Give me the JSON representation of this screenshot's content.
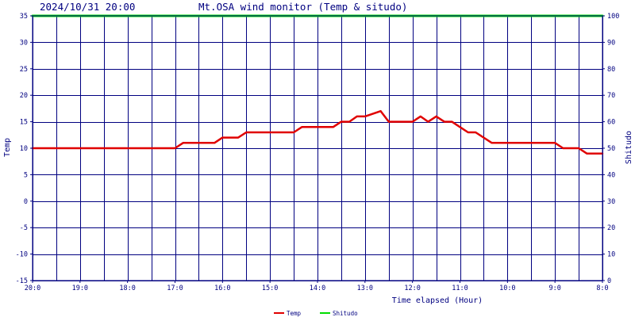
{
  "header": {
    "timestamp": "2024/10/31 20:00",
    "title": "Mt.OSA wind monitor (Temp & situdo)"
  },
  "colors": {
    "grid": "#000080",
    "axis": "#000080",
    "text": "#000080",
    "temp": "#e00000",
    "shitudo": "#00dd00",
    "background": "#ffffff"
  },
  "chart_data": {
    "type": "line",
    "title": "Mt.OSA wind monitor (Temp & situdo)",
    "xlabel": "Time elapsed (Hour)",
    "ylabel": "Temp",
    "y2label": "Shitudo",
    "xlim": [
      0,
      12
    ],
    "ylim": [
      -15,
      35
    ],
    "y2lim": [
      0,
      100
    ],
    "grid": true,
    "legend_position": "bottom-center",
    "x_ticks": [
      {
        "value": 0,
        "label": "20:0"
      },
      {
        "value": 1,
        "label": "19:0"
      },
      {
        "value": 2,
        "label": "18:0"
      },
      {
        "value": 3,
        "label": "17:0"
      },
      {
        "value": 4,
        "label": "16:0"
      },
      {
        "value": 5,
        "label": "15:0"
      },
      {
        "value": 6,
        "label": "14:0"
      },
      {
        "value": 7,
        "label": "13:0"
      },
      {
        "value": 8,
        "label": "12:0"
      },
      {
        "value": 9,
        "label": "11:0"
      },
      {
        "value": 10,
        "label": "10:0"
      },
      {
        "value": 11,
        "label": "9:0"
      },
      {
        "value": 12,
        "label": "8:0"
      }
    ],
    "y_ticks": [
      {
        "value": 35,
        "label": "35"
      },
      {
        "value": 30,
        "label": "30"
      },
      {
        "value": 25,
        "label": "25"
      },
      {
        "value": 20,
        "label": "20"
      },
      {
        "value": 15,
        "label": "15"
      },
      {
        "value": 10,
        "label": "10"
      },
      {
        "value": 5,
        "label": "5"
      },
      {
        "value": 0,
        "label": "0"
      },
      {
        "value": -5,
        "label": "-5"
      },
      {
        "value": -10,
        "label": "-10"
      },
      {
        "value": -15,
        "label": "-15"
      }
    ],
    "y2_ticks": [
      {
        "value": 100,
        "label": "100"
      },
      {
        "value": 90,
        "label": "90"
      },
      {
        "value": 80,
        "label": "80"
      },
      {
        "value": 70,
        "label": "70"
      },
      {
        "value": 60,
        "label": "60"
      },
      {
        "value": 50,
        "label": "50"
      },
      {
        "value": 40,
        "label": "40"
      },
      {
        "value": 30,
        "label": "30"
      },
      {
        "value": 20,
        "label": "20"
      },
      {
        "value": 10,
        "label": "10"
      },
      {
        "value": 0,
        "label": "0"
      }
    ],
    "series": [
      {
        "name": "Temp",
        "axis": "left",
        "color": "#e00000",
        "x": [
          0,
          3.0,
          3.17,
          3.83,
          4.0,
          4.33,
          4.5,
          5.5,
          5.67,
          6.33,
          6.5,
          6.67,
          6.83,
          7.0,
          7.33,
          7.5,
          8.0,
          8.17,
          8.33,
          8.5,
          8.67,
          8.83,
          9.0,
          9.17,
          9.33,
          9.67,
          10.17,
          10.5,
          11.0,
          11.17,
          11.5,
          11.67,
          12.0
        ],
        "values": [
          10,
          10,
          11,
          11,
          12,
          12,
          13,
          13,
          14,
          14,
          15,
          15,
          16,
          16,
          17,
          15,
          15,
          16,
          15,
          16,
          15,
          15,
          14,
          13,
          13,
          11,
          11,
          11,
          11,
          10,
          10,
          9,
          9
        ]
      },
      {
        "name": "Shitudo",
        "axis": "right",
        "color": "#00dd00",
        "x": [
          0,
          12
        ],
        "values": [
          100,
          100
        ]
      }
    ]
  }
}
